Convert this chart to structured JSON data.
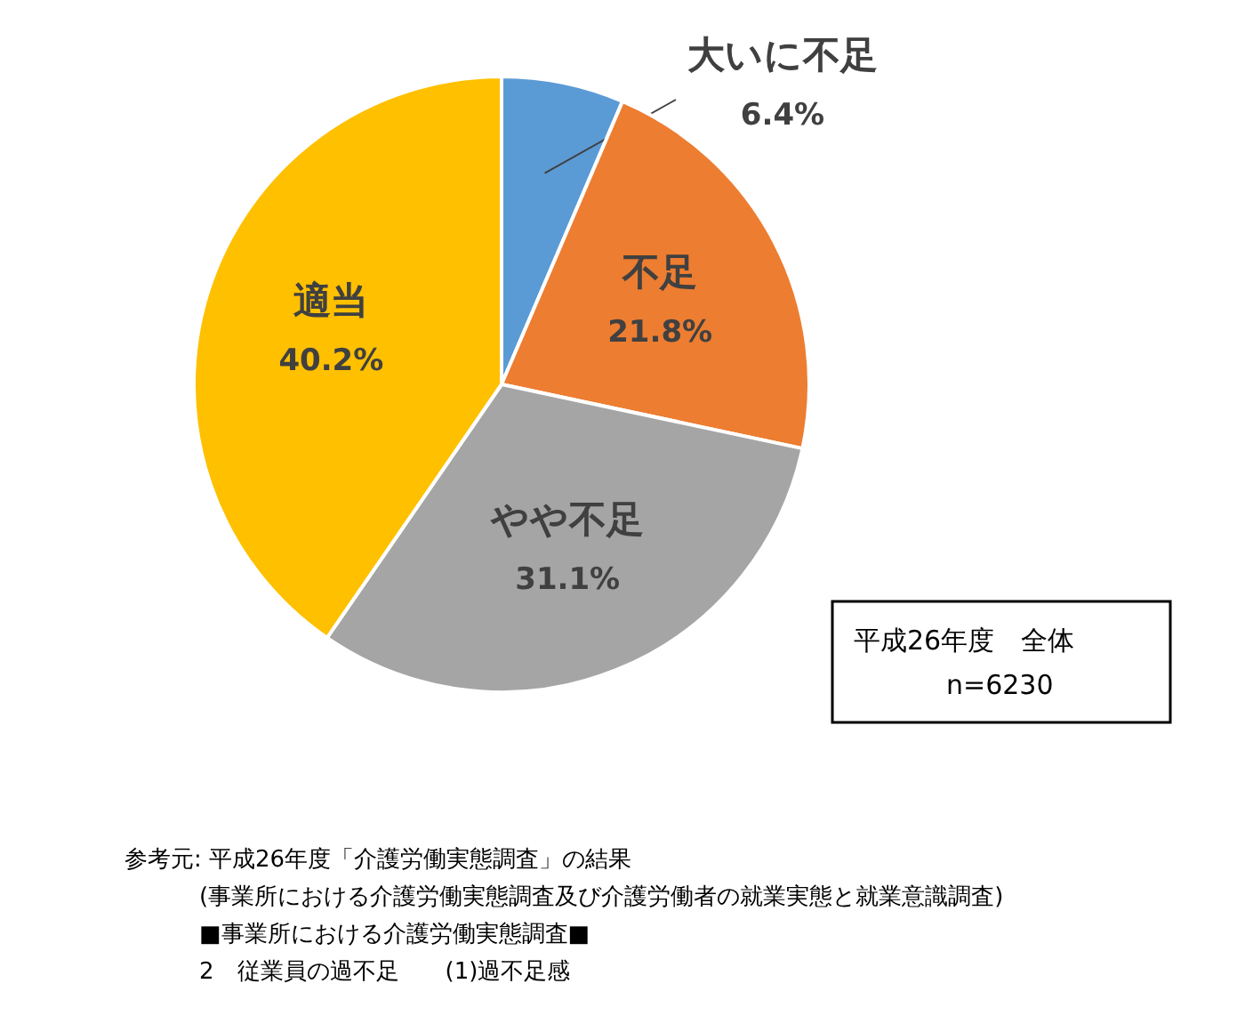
{
  "chart_data": {
    "type": "pie",
    "categories": [
      "大いに不足",
      "不足",
      "やや不足",
      "適当"
    ],
    "values": [
      6.4,
      21.8,
      31.1,
      40.2
    ],
    "colors": [
      "#5b9bd5",
      "#ed7d31",
      "#a5a5a5",
      "#ffc000"
    ],
    "value_labels": [
      "6.4%",
      "21.8%",
      "31.1%",
      "40.2%"
    ],
    "annotations": [
      "平成26年度　全体",
      "n=6230",
      "参考元: 平成26年度「介護労働実態調査」の結果",
      "(事業所における介護労働実態調査及び介護労働者の就業実態と就業意識調査)",
      "■事業所における介護労働実態調査■",
      "2　従業員の過不足　　(1)過不足感"
    ]
  }
}
